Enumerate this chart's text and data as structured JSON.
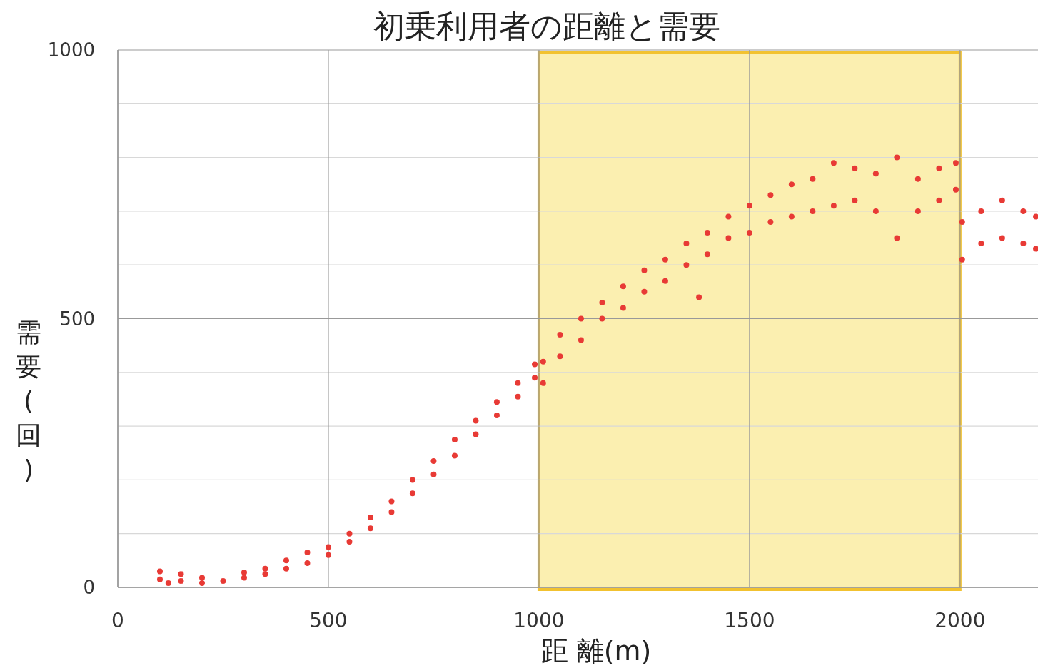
{
  "chart_data": {
    "type": "scatter",
    "title": "初乗利用者の距離と需要",
    "xlabel": "距 離(m)",
    "ylabel": "需要(回)",
    "x": [
      100,
      100,
      120,
      150,
      150,
      200,
      200,
      250,
      300,
      300,
      350,
      350,
      400,
      400,
      450,
      450,
      500,
      500,
      550,
      550,
      600,
      600,
      650,
      650,
      700,
      700,
      750,
      750,
      800,
      800,
      850,
      850,
      900,
      900,
      950,
      950,
      990,
      990,
      1010,
      1010,
      1050,
      1050,
      1100,
      1100,
      1150,
      1150,
      1200,
      1200,
      1250,
      1250,
      1300,
      1300,
      1350,
      1350,
      1380,
      1400,
      1400,
      1450,
      1450,
      1500,
      1500,
      1550,
      1550,
      1600,
      1600,
      1650,
      1650,
      1700,
      1700,
      1750,
      1750,
      1800,
      1800,
      1850,
      1850,
      1900,
      1900,
      1950,
      1950,
      1990,
      1990,
      2005,
      2005,
      2050,
      2050,
      2100,
      2100,
      2150,
      2150,
      2180,
      2180
    ],
    "values": [
      15,
      30,
      8,
      12,
      25,
      8,
      18,
      12,
      18,
      28,
      25,
      35,
      35,
      50,
      45,
      65,
      60,
      75,
      85,
      100,
      110,
      130,
      140,
      160,
      175,
      200,
      210,
      235,
      245,
      275,
      285,
      310,
      320,
      345,
      355,
      380,
      390,
      415,
      380,
      420,
      430,
      470,
      460,
      500,
      500,
      530,
      520,
      560,
      550,
      590,
      570,
      610,
      600,
      640,
      540,
      620,
      660,
      650,
      690,
      660,
      710,
      680,
      730,
      690,
      750,
      700,
      760,
      710,
      790,
      720,
      780,
      700,
      770,
      650,
      800,
      700,
      760,
      720,
      780,
      740,
      790,
      610,
      680,
      640,
      700,
      650,
      720,
      640,
      700,
      630,
      690
    ],
    "color": "#e83a35",
    "marker": "circle",
    "xlim": [
      0,
      2185
    ],
    "ylim": [
      0,
      1000
    ],
    "xticks": [
      0,
      500,
      1000,
      1500,
      2000
    ],
    "yticks": [
      0,
      {
        "value": 100,
        "label": null
      },
      {
        "value": 200,
        "label": null
      },
      {
        "value": 300,
        "label": null
      },
      {
        "value": 400,
        "label": null
      },
      500,
      {
        "value": 600,
        "label": null
      },
      {
        "value": 700,
        "label": null
      },
      {
        "value": 800,
        "label": null
      },
      {
        "value": 900,
        "label": null
      },
      1000
    ],
    "grid": true,
    "bands": [
      {
        "axis": "x",
        "from": 1000,
        "to": 2000,
        "color": "#fbefb0"
      }
    ]
  }
}
